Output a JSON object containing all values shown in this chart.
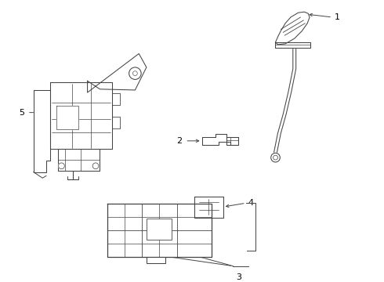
{
  "bg_color": "#ffffff",
  "line_color": "#444444",
  "label_color": "#000000",
  "fig_width": 4.9,
  "fig_height": 3.6,
  "dpi": 100,
  "lw": 0.75
}
